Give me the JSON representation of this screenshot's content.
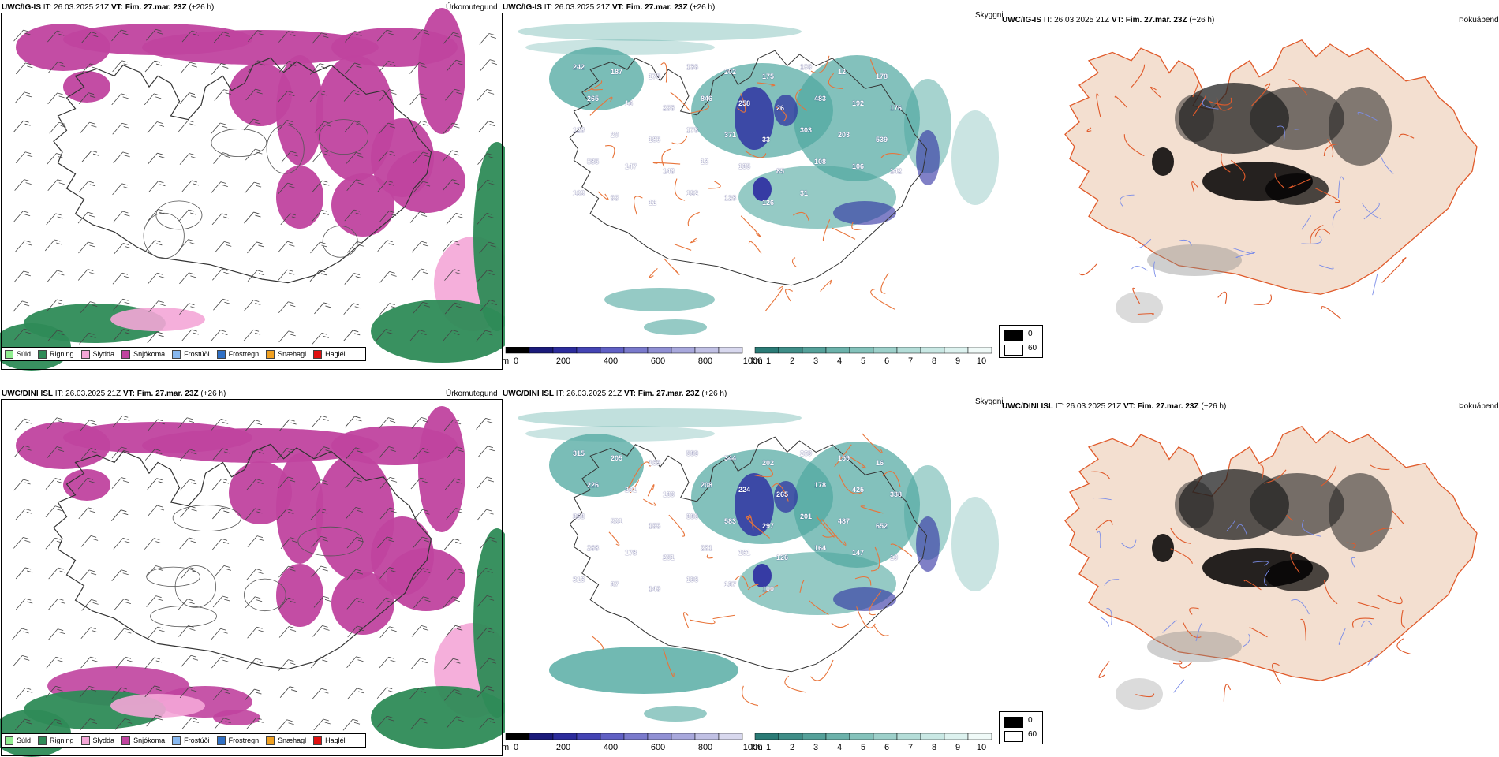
{
  "rows": [
    {
      "model": "UWC/IG-IS",
      "it_label": "IT:",
      "it_value": "26.03.2025 21Z",
      "vt_label": "VT:",
      "vt_value": "Fim. 27.mar. 23Z",
      "lead": "(+26 h)",
      "visibility_labels": [
        "242",
        "187",
        "175",
        "136",
        "202",
        "175",
        "199",
        "12",
        "178",
        "265",
        "16",
        "256",
        "846",
        "258",
        "26",
        "483",
        "192",
        "176",
        "128",
        "20",
        "185",
        "178",
        "371",
        "33",
        "303",
        "203",
        "539",
        "585",
        "147",
        "146",
        "13",
        "135",
        "85",
        "108",
        "106",
        "142",
        "109",
        "95",
        "12",
        "192",
        "128",
        "126",
        "31"
      ]
    },
    {
      "model": "UWC/DINI ISL",
      "it_label": "IT:",
      "it_value": "26.03.2025 21Z",
      "vt_label": "VT:",
      "vt_value": "Fim. 27.mar. 23Z",
      "lead": "(+26 h)",
      "visibility_labels": [
        "315",
        "205",
        "169",
        "589",
        "344",
        "202",
        "269",
        "159",
        "16",
        "226",
        "201",
        "139",
        "208",
        "224",
        "265",
        "178",
        "425",
        "338",
        "368",
        "501",
        "195",
        "380",
        "583",
        "297",
        "201",
        "487",
        "652",
        "268",
        "178",
        "251",
        "231",
        "161",
        "126",
        "164",
        "147",
        "10",
        "316",
        "37",
        "149",
        "196",
        "137",
        "100"
      ]
    }
  ],
  "panel_titles": {
    "precip_type": "Úrkomutegund",
    "visibility": "Skyggni",
    "fog": "Þokuábendi"
  },
  "precip_legend": [
    {
      "label": "Súld",
      "color": "#90ee90"
    },
    {
      "label": "Rigning",
      "color": "#2e8b57"
    },
    {
      "label": "Slydda",
      "color": "#f4a6d7"
    },
    {
      "label": "Snjókoma",
      "color": "#c0439f"
    },
    {
      "label": "Frostúði",
      "color": "#87b8f0"
    },
    {
      "label": "Frostregn",
      "color": "#2f6fc4"
    },
    {
      "label": "Snæhagl",
      "color": "#f0a020"
    },
    {
      "label": "Haglél",
      "color": "#e01010"
    }
  ],
  "visibility_scale_m": {
    "unit": "m",
    "ticks": [
      "0",
      "200",
      "400",
      "600",
      "800",
      "1000"
    ],
    "colors": [
      "#000000",
      "#1a1a7a",
      "#2c2c9c",
      "#4444b4",
      "#6060c4",
      "#7a7acc",
      "#9090d4",
      "#a8a8dc",
      "#c0c0e4",
      "#d8d8ee"
    ]
  },
  "visibility_scale_km": {
    "unit": "km",
    "ticks": [
      "1",
      "2",
      "3",
      "4",
      "5",
      "6",
      "7",
      "8",
      "9",
      "10"
    ],
    "colors": [
      "#2a7b76",
      "#3f8e88",
      "#55a19a",
      "#6cb2ab",
      "#84c2bb",
      "#9dd0ca",
      "#b4ddd8",
      "#c9e8e4",
      "#ddf2ef",
      "#f0faf8"
    ]
  },
  "fog_legend": [
    {
      "label": "0",
      "color": "#000000"
    },
    {
      "label": "60",
      "color": "#ffffff"
    }
  ],
  "map_colors": {
    "land_fog": "#f3dfd0",
    "roads": "#e8743a",
    "rivers": "#7a8ce8",
    "snow": "#c0439f",
    "rain": "#2e8b57",
    "sleet": "#f4a6d7",
    "teal": "#4ea79f",
    "deepblue": "#2b2ba0"
  }
}
